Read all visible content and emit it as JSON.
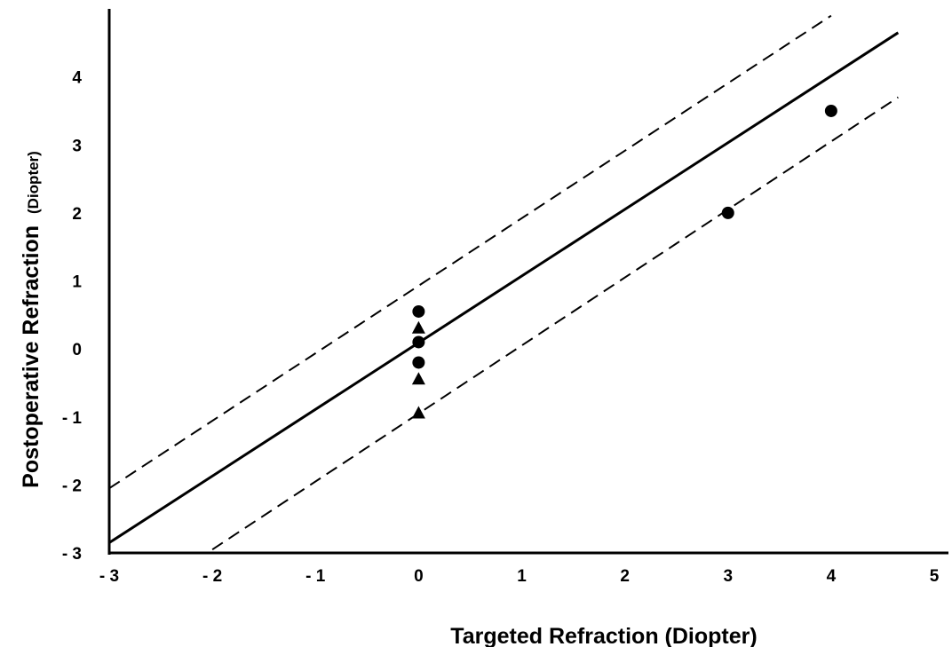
{
  "chart_data": {
    "type": "scatter",
    "title": "",
    "xlabel": "Targeted Refraction (Diopter)",
    "ylabel_main": "Postoperative Refraction",
    "ylabel_unit": "(Diopter)",
    "xlim": [
      -3,
      5
    ],
    "ylim": [
      -3,
      5
    ],
    "x_ticks": [
      {
        "value": -3,
        "label": "- 3"
      },
      {
        "value": -2,
        "label": "- 2"
      },
      {
        "value": -1,
        "label": "- 1"
      },
      {
        "value": 0,
        "label": "0"
      },
      {
        "value": 1,
        "label": "1"
      },
      {
        "value": 2,
        "label": "2"
      },
      {
        "value": 3,
        "label": "3"
      },
      {
        "value": 4,
        "label": "4"
      },
      {
        "value": 5,
        "label": "5"
      }
    ],
    "y_ticks": [
      {
        "value": -3,
        "label": "- 3"
      },
      {
        "value": -2,
        "label": "- 2"
      },
      {
        "value": -1,
        "label": "- 1"
      },
      {
        "value": 0,
        "label": "0"
      },
      {
        "value": 1,
        "label": "1"
      },
      {
        "value": 2,
        "label": "2"
      },
      {
        "value": 3,
        "label": "3"
      },
      {
        "value": 4,
        "label": "4"
      }
    ],
    "grid": false,
    "legend": "none",
    "series": [
      {
        "marker": "circle",
        "points": [
          [
            0,
            0.55
          ],
          [
            0,
            0.1
          ],
          [
            0,
            -0.2
          ],
          [
            3,
            2.0
          ],
          [
            4,
            3.5
          ]
        ]
      },
      {
        "marker": "triangle",
        "points": [
          [
            0,
            0.3
          ],
          [
            0,
            -0.45
          ],
          [
            0,
            -0.95
          ]
        ]
      }
    ],
    "lines": [
      {
        "style": "solid",
        "x": [
          -3,
          4.65
        ],
        "y": [
          -2.85,
          4.65
        ]
      },
      {
        "style": "dashed",
        "x": [
          -3,
          4.0
        ],
        "y": [
          -2.05,
          4.9
        ]
      },
      {
        "style": "dashed",
        "x": [
          -2.0,
          4.65
        ],
        "y": [
          -2.95,
          3.7
        ]
      }
    ],
    "colors": {
      "ink": "#000000",
      "background": "#ffffff"
    }
  }
}
